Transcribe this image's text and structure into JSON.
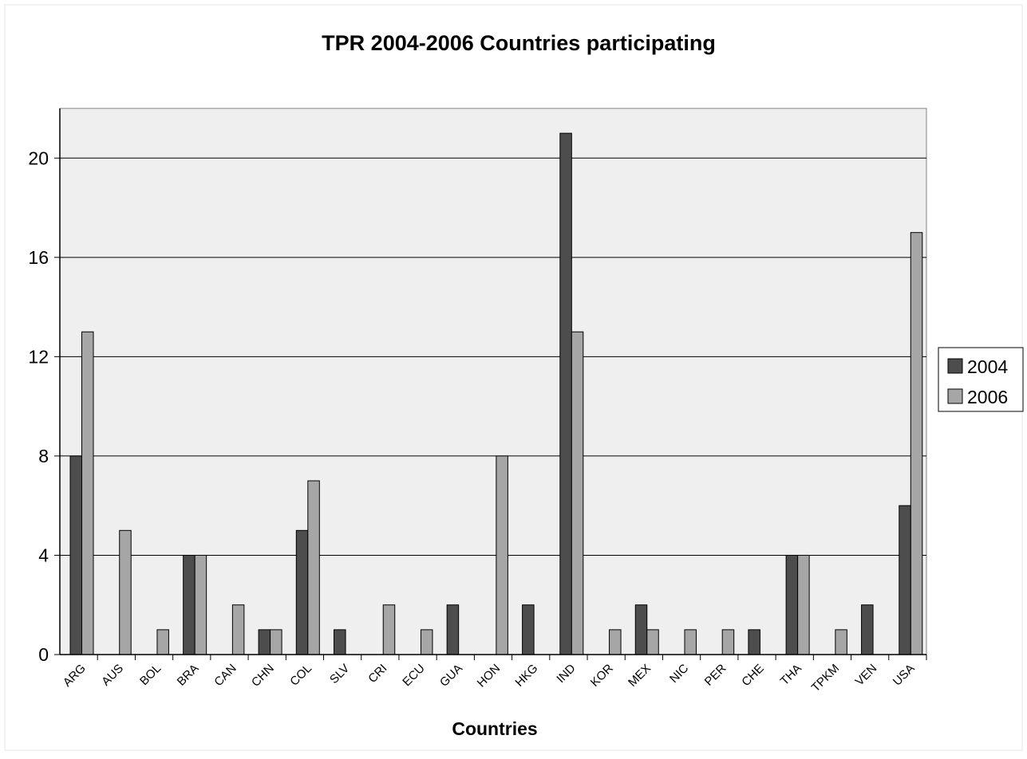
{
  "chart_data": {
    "type": "bar",
    "title": "TPR 2004-2006 Countries participating",
    "xlabel": "Countries",
    "ylabel": "",
    "ylim": [
      0,
      22
    ],
    "yticks": [
      0,
      4,
      8,
      12,
      16,
      20
    ],
    "grid": true,
    "legend_position": "right",
    "categories": [
      "ARG",
      "AUS",
      "BOL",
      "BRA",
      "CAN",
      "CHN",
      "COL",
      "SLV",
      "CRI",
      "ECU",
      "GUA",
      "HON",
      "HKG",
      "IND",
      "KOR",
      "MEX",
      "NIC",
      "PER",
      "CHE",
      "THA",
      "TPKM",
      "VEN",
      "USA"
    ],
    "series": [
      {
        "name": "2004",
        "color": "#4d4d4d",
        "values": [
          8,
          0,
          0,
          4,
          0,
          1,
          5,
          1,
          0,
          0,
          2,
          0,
          2,
          21,
          0,
          2,
          0,
          0,
          1,
          4,
          0,
          2,
          6
        ]
      },
      {
        "name": "2006",
        "color": "#a6a6a6",
        "values": [
          13,
          5,
          1,
          4,
          2,
          1,
          7,
          0,
          2,
          1,
          0,
          8,
          0,
          13,
          1,
          1,
          1,
          1,
          0,
          4,
          1,
          0,
          17
        ]
      }
    ],
    "plot_background": "#efefef"
  }
}
